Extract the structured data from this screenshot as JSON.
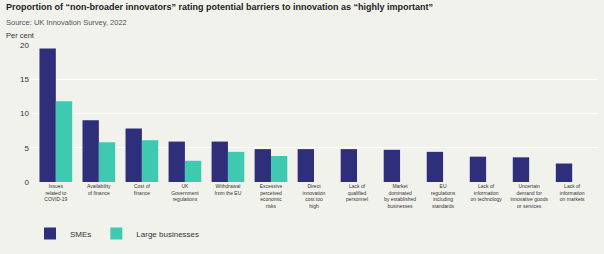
{
  "chart_data": {
    "type": "bar",
    "title": "Proportion of “non-broader innovators” rating potential barriers to innovation as “highly important”",
    "subtitle": "Source: UK Innovation Survey, 2022",
    "ylabel": "Per cent",
    "categories": [
      "Issues\nrelated to\nCOVID-19",
      "Availability\nof finance",
      "Cost of\nfinance",
      "UK\nGovernment\nregulations",
      "Withdrawal\nfrom the EU",
      "Excessive\nperceived\neconomic\nrisks",
      "Direct\ninnovation\ncost too\nhigh",
      "Lack of\nqualified\npersonnel",
      "Market\ndominated\nby established\nbusinesses",
      "EU\nregulations\nincluding\nstandards",
      "Lack of\ninformation\non technology",
      "Uncertain\ndemand for\ninnovative goods\nor services",
      "Lack of\ninformation\non markets"
    ],
    "series": [
      {
        "name": "SMEs",
        "color": "#2e2e7a",
        "values": [
          19.5,
          9.0,
          7.8,
          5.9,
          5.9,
          4.8,
          4.8,
          4.8,
          4.7,
          4.4,
          3.7,
          3.6,
          2.7
        ]
      },
      {
        "name": "Large businesses",
        "color": "#3ec9b0",
        "values": [
          11.8,
          5.8,
          6.1,
          3.1,
          4.4,
          3.8,
          null,
          null,
          null,
          null,
          null,
          null,
          null
        ]
      }
    ],
    "ylim": [
      0,
      20
    ],
    "yticks": [
      0,
      5,
      10,
      15,
      20
    ],
    "grid": true,
    "legend": "bottom"
  }
}
